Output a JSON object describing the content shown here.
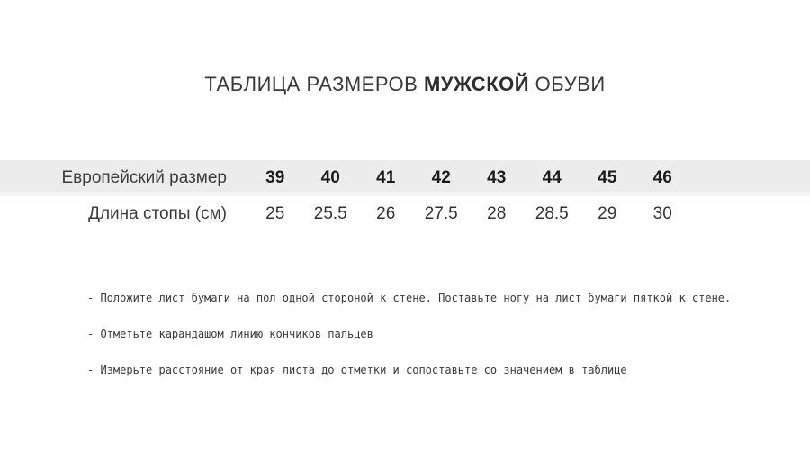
{
  "title": {
    "prefix": "ТАБЛИЦА РАЗМЕРОВ ",
    "highlight": "МУЖСКОЙ",
    "suffix": " ОБУВИ"
  },
  "size_table": {
    "rows": [
      {
        "label": "Европейский размер",
        "values": [
          "39",
          "40",
          "41",
          "42",
          "43",
          "44",
          "45",
          "46"
        ]
      },
      {
        "label": "Длина стопы (см)",
        "values": [
          "25",
          "25.5",
          "26",
          "27.5",
          "28",
          "28.5",
          "29",
          "30"
        ]
      }
    ]
  },
  "instructions": [
    "- Положите лист бумаги на пол одной стороной к стене. Поставьте ногу на лист бумаги пяткой к стене.",
    "- Отметьте карандашом линию кончиков пальцев",
    "- Измерьте расстояние от края листа до отметки и сопоставьте со значением в таблице"
  ],
  "colors": {
    "header_row_bg": "#ececec",
    "header_row_strip": "#f4f4f4",
    "title_text": "#3a3a3a",
    "header_value_text": "#1c1c1c",
    "body_text": "#333333"
  },
  "chart_data": {
    "type": "table",
    "title": "ТАБЛИЦА РАЗМЕРОВ МУЖСКОЙ ОБУВИ",
    "row_headers": [
      "Европейский размер",
      "Длина стопы (см)"
    ],
    "eu_sizes": [
      39,
      40,
      41,
      42,
      43,
      44,
      45,
      46
    ],
    "foot_length_cm": [
      25,
      25.5,
      26,
      27.5,
      28,
      28.5,
      29,
      30
    ]
  }
}
